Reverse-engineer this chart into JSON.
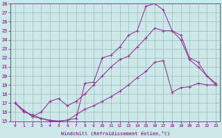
{
  "xlabel": "Windchill (Refroidissement éolien,°C)",
  "bg_color": "#cce8e8",
  "line_color": "#993399",
  "grid_color": "#99bbbb",
  "xlim": [
    -0.5,
    23.5
  ],
  "ylim": [
    15,
    28
  ],
  "xticks": [
    0,
    1,
    2,
    3,
    4,
    5,
    6,
    7,
    8,
    9,
    10,
    11,
    12,
    13,
    14,
    15,
    16,
    17,
    18,
    19,
    20,
    21,
    22,
    23
  ],
  "yticks": [
    15,
    16,
    17,
    18,
    19,
    20,
    21,
    22,
    23,
    24,
    25,
    26,
    27,
    28
  ],
  "line1_x": [
    0,
    1,
    2,
    3,
    4,
    5,
    6,
    7,
    8,
    9,
    10,
    11,
    12,
    13,
    14,
    15,
    16,
    17,
    18,
    19,
    20,
    21,
    22,
    23
  ],
  "line1_y": [
    17,
    16,
    15.7,
    15.3,
    15.1,
    15.0,
    15.1,
    15.3,
    19.2,
    19.3,
    22.0,
    22.3,
    23.2,
    24.5,
    25.0,
    27.7,
    28.0,
    27.3,
    25.0,
    24.5,
    22.0,
    21.5,
    20.0,
    19.2
  ],
  "line2_x": [
    0,
    1,
    2,
    3,
    4,
    5,
    6,
    7,
    8,
    9,
    10,
    11,
    12,
    13,
    14,
    15,
    16,
    17,
    18,
    19,
    20,
    21,
    22,
    23
  ],
  "line2_y": [
    17,
    16.2,
    15.5,
    15.3,
    15.0,
    15.0,
    15.1,
    15.7,
    16.3,
    16.7,
    17.2,
    17.7,
    18.3,
    19.0,
    19.8,
    20.5,
    21.5,
    21.7,
    18.2,
    18.7,
    18.8,
    19.2,
    19.0,
    19.0
  ],
  "line3_x": [
    0,
    1,
    2,
    3,
    4,
    5,
    6,
    7,
    8,
    9,
    10,
    11,
    12,
    13,
    14,
    15,
    16,
    17,
    18,
    19,
    20,
    21,
    22,
    23
  ],
  "line3_y": [
    17,
    16.2,
    15.5,
    16.0,
    17.2,
    17.5,
    16.7,
    17.2,
    18.0,
    19.0,
    20.0,
    21.0,
    21.8,
    22.2,
    23.2,
    24.2,
    25.3,
    25.0,
    25.0,
    24.0,
    21.8,
    21.0,
    20.0,
    19.0
  ]
}
